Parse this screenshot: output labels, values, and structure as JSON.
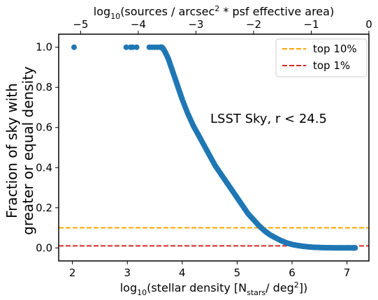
{
  "chart_data": {
    "type": "scatter",
    "annotation": "LSST Sky, r < 24.5",
    "ylabel_line1": "Fraction of sky with",
    "ylabel_line2": "greater or equal  density",
    "xlim": [
      1.75,
      7.4
    ],
    "ylim": [
      -0.065,
      1.065
    ],
    "x_ticks": [
      2,
      3,
      4,
      5,
      6,
      7
    ],
    "y_ticks": [
      0.0,
      0.2,
      0.4,
      0.6,
      0.8,
      1.0
    ],
    "top_xlim": [
      -5.38,
      -0.0
    ],
    "top_x_ticks": [
      -5,
      -4,
      -3,
      -2,
      -1,
      0
    ],
    "top_x_tick_labels": [
      "−5",
      "−4",
      "−3",
      "−2",
      "−1",
      "0"
    ],
    "xlabel_parts": {
      "base": "log",
      "base_sub": "10",
      "open": "(stellar density [N",
      "n_sub": "stars",
      "middle": "/ deg",
      "sup": "2",
      "close": "])"
    },
    "top_xlabel_parts": {
      "base": "log",
      "base_sub": "10",
      "open": "(sources / arcsec",
      "sup": "2",
      "close": " * psf effective area)"
    },
    "series": [
      {
        "color": "#1f77b4",
        "points": [
          [
            2.03,
            1.0
          ],
          [
            2.98,
            1.0
          ],
          [
            3.06,
            1.0
          ],
          [
            3.1,
            1.0
          ],
          [
            3.17,
            1.0
          ],
          [
            3.4,
            1.0
          ],
          [
            3.45,
            1.0
          ],
          [
            3.5,
            1.0
          ],
          [
            3.55,
            1.0
          ],
          [
            3.6,
            1.0
          ],
          [
            3.63,
            1.0
          ],
          [
            3.66,
            0.99
          ],
          [
            3.7,
            0.97
          ],
          [
            3.75,
            0.94
          ],
          [
            3.8,
            0.9
          ],
          [
            3.85,
            0.86
          ],
          [
            3.9,
            0.82
          ],
          [
            3.95,
            0.78
          ],
          [
            4.0,
            0.74
          ],
          [
            4.1,
            0.67
          ],
          [
            4.2,
            0.61
          ],
          [
            4.3,
            0.56
          ],
          [
            4.4,
            0.51
          ],
          [
            4.5,
            0.46
          ],
          [
            4.6,
            0.41
          ],
          [
            4.7,
            0.37
          ],
          [
            4.8,
            0.33
          ],
          [
            4.9,
            0.29
          ],
          [
            5.0,
            0.25
          ],
          [
            5.1,
            0.21
          ],
          [
            5.2,
            0.17
          ],
          [
            5.3,
            0.14
          ],
          [
            5.4,
            0.11
          ],
          [
            5.5,
            0.085
          ],
          [
            5.6,
            0.065
          ],
          [
            5.7,
            0.05
          ],
          [
            5.8,
            0.036
          ],
          [
            5.9,
            0.025
          ],
          [
            6.0,
            0.017
          ],
          [
            6.1,
            0.012
          ],
          [
            6.2,
            0.008
          ],
          [
            6.3,
            0.005
          ],
          [
            6.4,
            0.003
          ],
          [
            6.5,
            0.002
          ],
          [
            6.6,
            0.001
          ],
          [
            6.7,
            0.0005
          ],
          [
            6.8,
            0.0002
          ],
          [
            6.9,
            0.0001
          ],
          [
            7.0,
            0.0
          ],
          [
            7.1,
            0.0
          ],
          [
            7.15,
            0.0
          ]
        ]
      }
    ],
    "hlines": [
      {
        "name": "top 10%",
        "y": 0.1,
        "color": "#ffa500"
      },
      {
        "name": "top 1%",
        "y": 0.01,
        "color": "#d62728"
      }
    ],
    "legend_position": "upper right",
    "grid": false
  }
}
